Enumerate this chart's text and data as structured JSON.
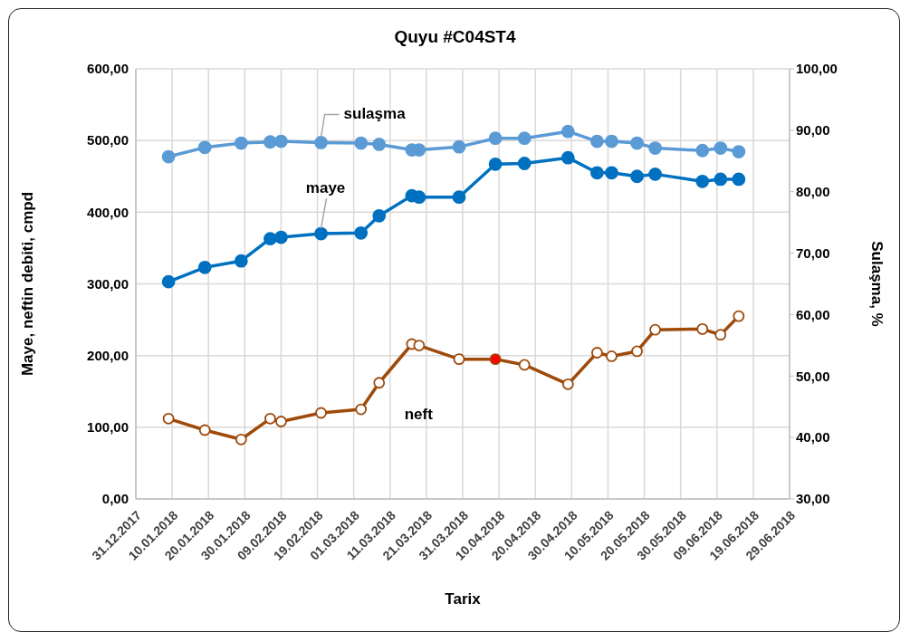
{
  "chart_data": {
    "type": "line",
    "title": "Quyu #C04ST4",
    "xlabel": "Tarix",
    "ylabel": "Maye,  neftin debiti, cmpd",
    "y2label": "Sulaşma, %",
    "x": [
      "2018-01-09",
      "2018-01-19",
      "2018-01-29",
      "2018-02-06",
      "2018-02-09",
      "2018-02-20",
      "2018-03-03",
      "2018-03-08",
      "2018-03-17",
      "2018-03-19",
      "2018-03-30",
      "2018-04-09",
      "2018-04-17",
      "2018-04-29",
      "2018-05-07",
      "2018-05-11",
      "2018-05-18",
      "2018-05-23",
      "2018-06-05",
      "2018-06-10",
      "2018-06-15"
    ],
    "series": [
      {
        "name": "maye",
        "color": "#0070c0",
        "values": [
          303,
          323,
          332,
          363,
          365,
          370,
          371,
          395,
          423,
          421,
          421,
          467,
          468,
          476,
          455,
          455,
          450,
          453,
          443,
          446,
          446
        ]
      },
      {
        "name": "neft",
        "color": "#9e4a0b",
        "colors": [
          "#ffffff",
          "#ffffff",
          "#ffffff",
          "#ffffff",
          "#ffffff",
          "#ffffff",
          "#ffffff",
          "#ffffff",
          "#ffffff",
          "#ffffff",
          "#ffffff",
          "#ff0000",
          "#ffffff",
          "#ffffff",
          "#ffffff",
          "#ffffff",
          "#ffffff",
          "#ffffff",
          "#ffffff",
          "#ffffff",
          "#ffffff"
        ],
        "values": [
          112,
          96,
          83,
          112,
          108,
          120,
          125,
          162,
          216,
          214,
          195,
          195,
          187,
          160,
          204,
          199,
          206,
          236,
          237,
          229,
          255
        ]
      },
      {
        "name": "sulaşma",
        "color": "#5b9bd5",
        "axis": "y2",
        "values": [
          85.7,
          87.2,
          87.9,
          88.1,
          88.2,
          88.0,
          87.9,
          87.7,
          86.8,
          86.8,
          87.3,
          88.7,
          88.7,
          89.8,
          88.2,
          88.2,
          87.9,
          87.1,
          86.7,
          87.1,
          86.5
        ]
      }
    ],
    "xlim": [
      "2017-12-31",
      "2018-06-29"
    ],
    "xticks": [
      {
        "value": "2017-12-31",
        "label": "31.12.2017"
      },
      {
        "value": "2018-01-10",
        "label": "10.01.2018"
      },
      {
        "value": "2018-01-20",
        "label": "20.01.2018"
      },
      {
        "value": "2018-01-30",
        "label": "30.01.2018"
      },
      {
        "value": "2018-02-09",
        "label": "09.02.2018"
      },
      {
        "value": "2018-02-19",
        "label": "19.02.2018"
      },
      {
        "value": "2018-03-01",
        "label": "01.03.2018"
      },
      {
        "value": "2018-03-11",
        "label": "11.03.2018"
      },
      {
        "value": "2018-03-21",
        "label": "21.03.2018"
      },
      {
        "value": "2018-03-31",
        "label": "31.03.2018"
      },
      {
        "value": "2018-04-10",
        "label": "10.04.2018"
      },
      {
        "value": "2018-04-20",
        "label": "20.04.2018"
      },
      {
        "value": "2018-04-30",
        "label": "30.04.2018"
      },
      {
        "value": "2018-05-10",
        "label": "10.05.2018"
      },
      {
        "value": "2018-05-20",
        "label": "20.05.2018"
      },
      {
        "value": "2018-05-30",
        "label": "30.05.2018"
      },
      {
        "value": "2018-06-09",
        "label": "09.06.2018"
      },
      {
        "value": "2018-06-19",
        "label": "19.06.2018"
      },
      {
        "value": "2018-06-29",
        "label": "29.06.2018"
      }
    ],
    "ylim": [
      0,
      600
    ],
    "yticks": [
      {
        "value": 0,
        "label": "0,00"
      },
      {
        "value": 100,
        "label": "100,00"
      },
      {
        "value": 200,
        "label": "200,00"
      },
      {
        "value": 300,
        "label": "300,00"
      },
      {
        "value": 400,
        "label": "400,00"
      },
      {
        "value": 500,
        "label": "500,00"
      },
      {
        "value": 600,
        "label": "600,00"
      }
    ],
    "y2lim": [
      30,
      100
    ],
    "y2ticks": [
      {
        "value": 30,
        "label": "30,00"
      },
      {
        "value": 40,
        "label": "40,00"
      },
      {
        "value": 50,
        "label": "50,00"
      },
      {
        "value": 60,
        "label": "60,00"
      },
      {
        "value": 70,
        "label": "70,00"
      },
      {
        "value": 80,
        "label": "80,00"
      },
      {
        "value": 90,
        "label": "90,00"
      },
      {
        "value": 100,
        "label": "100,00"
      }
    ],
    "grid": true,
    "marker": "circle",
    "line_style": "solid"
  }
}
